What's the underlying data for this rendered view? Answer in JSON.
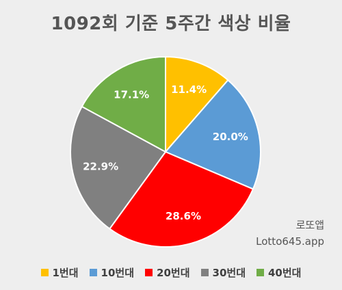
{
  "chart_data": {
    "type": "pie",
    "title": "1092회 기준 5주간 색상 비율",
    "categories": [
      "1번대",
      "10번대",
      "20번대",
      "30번대",
      "40번대"
    ],
    "values": [
      11.4,
      20.0,
      28.6,
      22.9,
      17.1
    ],
    "labels": [
      "11.4%",
      "20.0%",
      "28.6%",
      "22.9%",
      "17.1%"
    ],
    "colors": [
      "#FFC000",
      "#5B9BD5",
      "#FF0000",
      "#808080",
      "#70AD47"
    ],
    "legend_position": "bottom"
  },
  "watermark": {
    "line1": "로또앱",
    "line2": "Lotto645.app"
  }
}
